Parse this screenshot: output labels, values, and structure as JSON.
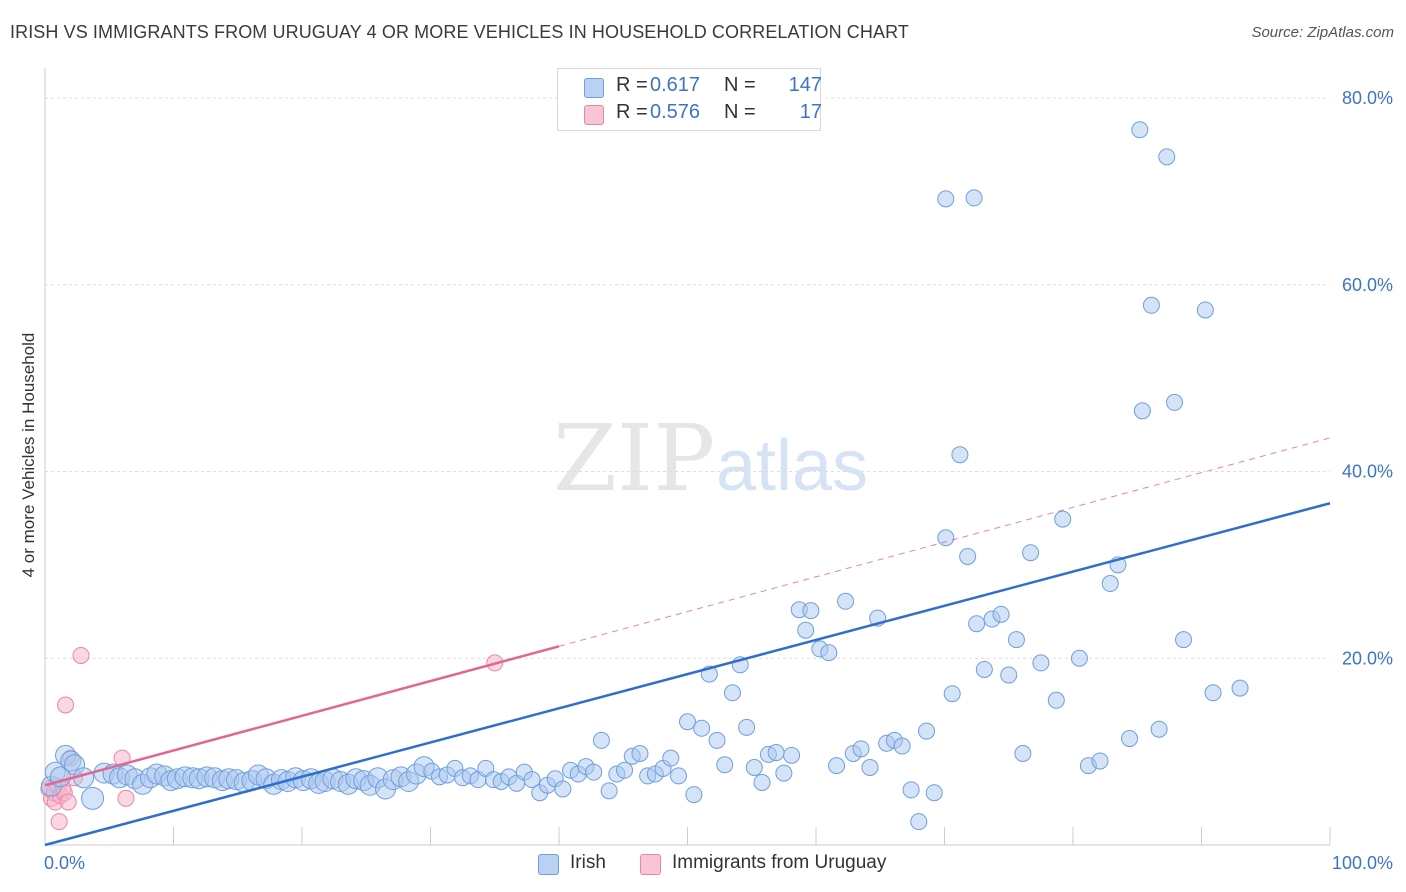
{
  "title": "IRISH VS IMMIGRANTS FROM URUGUAY 4 OR MORE VEHICLES IN HOUSEHOLD CORRELATION CHART",
  "source": "Source: ZipAtlas.com",
  "watermark": {
    "zip": "ZIP",
    "atlas": "atlas"
  },
  "colors": {
    "irish_fill": "#a9c8f0",
    "irish_stroke": "#6f9fdc",
    "irish_line": "#2f6fcb",
    "uruguay_fill": "#f7b6c9",
    "uruguay_stroke": "#ea86a6",
    "uruguay_line": "#e06792",
    "tick_text": "#3d74c6",
    "grid": "#dddddd"
  },
  "legend_top": {
    "rows": [
      {
        "r_label": "R =",
        "r_value": "0.617",
        "n_label": "N =",
        "n_value": "147"
      },
      {
        "r_label": "R =",
        "r_value": "0.576",
        "n_label": "N =",
        "n_value": "17"
      }
    ]
  },
  "legend_bottom": [
    "Irish",
    "Immigrants from Uruguay"
  ],
  "chart_data": {
    "type": "scatter",
    "xlabel": "",
    "ylabel": "4 or more Vehicles in Household",
    "xlim": [
      0,
      100
    ],
    "ylim": [
      0,
      80
    ],
    "x_tick_labels": [
      "0.0%",
      "100.0%"
    ],
    "y_ticks": [
      20,
      40,
      60,
      80
    ],
    "y_tick_labels": [
      "20.0%",
      "40.0%",
      "60.0%",
      "80.0%"
    ],
    "grid": true,
    "legend_position": "top-center",
    "series": [
      {
        "name": "Irish",
        "trend": {
          "x": [
            0,
            100
          ],
          "y": [
            0,
            36.6
          ]
        },
        "points": [
          [
            0.5,
            6.3
          ],
          [
            0.8,
            7.8
          ],
          [
            1.2,
            7.3
          ],
          [
            1.6,
            9.6
          ],
          [
            2.0,
            9.0
          ],
          [
            2.3,
            8.6
          ],
          [
            3.0,
            7.2
          ],
          [
            3.7,
            5.0
          ],
          [
            4.6,
            7.7
          ],
          [
            5.3,
            7.6
          ],
          [
            5.8,
            7.2
          ],
          [
            6.4,
            7.5
          ],
          [
            7.0,
            7.1
          ],
          [
            7.6,
            6.5
          ],
          [
            8.2,
            7.2
          ],
          [
            8.7,
            7.6
          ],
          [
            9.3,
            7.4
          ],
          [
            9.8,
            6.9
          ],
          [
            10.3,
            7.1
          ],
          [
            10.9,
            7.3
          ],
          [
            11.5,
            7.2
          ],
          [
            12.0,
            7.1
          ],
          [
            12.6,
            7.3
          ],
          [
            13.2,
            7.2
          ],
          [
            13.8,
            6.9
          ],
          [
            14.3,
            7.1
          ],
          [
            14.9,
            7.0
          ],
          [
            15.5,
            6.7
          ],
          [
            16.1,
            6.9
          ],
          [
            16.6,
            7.5
          ],
          [
            17.2,
            7.1
          ],
          [
            17.8,
            6.5
          ],
          [
            18.4,
            7.0
          ],
          [
            18.9,
            6.8
          ],
          [
            19.5,
            7.2
          ],
          [
            20.1,
            6.9
          ],
          [
            20.7,
            7.1
          ],
          [
            21.3,
            6.6
          ],
          [
            21.8,
            6.8
          ],
          [
            22.4,
            7.1
          ],
          [
            23.0,
            6.8
          ],
          [
            23.6,
            6.5
          ],
          [
            24.2,
            7.1
          ],
          [
            24.8,
            6.9
          ],
          [
            25.3,
            6.4
          ],
          [
            25.9,
            7.2
          ],
          [
            26.5,
            6.0
          ],
          [
            27.1,
            7.0
          ],
          [
            27.7,
            7.3
          ],
          [
            28.3,
            6.8
          ],
          [
            28.9,
            7.6
          ],
          [
            29.5,
            8.4
          ],
          [
            30.1,
            7.9
          ],
          [
            30.7,
            7.3
          ],
          [
            31.3,
            7.5
          ],
          [
            31.9,
            8.2
          ],
          [
            32.5,
            7.2
          ],
          [
            33.1,
            7.4
          ],
          [
            33.7,
            7.0
          ],
          [
            34.3,
            8.2
          ],
          [
            34.9,
            7.0
          ],
          [
            35.5,
            6.8
          ],
          [
            36.1,
            7.3
          ],
          [
            36.7,
            6.6
          ],
          [
            37.3,
            7.8
          ],
          [
            37.9,
            7.0
          ],
          [
            38.5,
            5.6
          ],
          [
            39.1,
            6.4
          ],
          [
            39.7,
            7.1
          ],
          [
            40.3,
            6.0
          ],
          [
            40.9,
            8.0
          ],
          [
            41.5,
            7.6
          ],
          [
            42.1,
            8.4
          ],
          [
            42.7,
            7.8
          ],
          [
            43.3,
            11.2
          ],
          [
            43.9,
            5.8
          ],
          [
            44.5,
            7.6
          ],
          [
            45.1,
            8.0
          ],
          [
            45.7,
            9.5
          ],
          [
            46.3,
            9.8
          ],
          [
            46.9,
            7.4
          ],
          [
            47.5,
            7.6
          ],
          [
            48.1,
            8.2
          ],
          [
            48.7,
            9.3
          ],
          [
            49.3,
            7.4
          ],
          [
            50.0,
            13.2
          ],
          [
            50.5,
            5.4
          ],
          [
            51.1,
            12.5
          ],
          [
            51.7,
            18.3
          ],
          [
            52.3,
            11.2
          ],
          [
            52.9,
            8.6
          ],
          [
            53.5,
            16.3
          ],
          [
            54.1,
            19.3
          ],
          [
            54.6,
            12.6
          ],
          [
            55.2,
            8.3
          ],
          [
            55.8,
            6.7
          ],
          [
            56.3,
            9.7
          ],
          [
            56.9,
            9.9
          ],
          [
            57.5,
            7.7
          ],
          [
            58.1,
            9.6
          ],
          [
            58.7,
            25.2
          ],
          [
            59.2,
            23.0
          ],
          [
            59.6,
            25.1
          ],
          [
            60.3,
            21.0
          ],
          [
            61.0,
            20.6
          ],
          [
            61.6,
            8.5
          ],
          [
            62.3,
            26.1
          ],
          [
            62.9,
            9.8
          ],
          [
            63.5,
            10.3
          ],
          [
            64.2,
            8.3
          ],
          [
            64.8,
            24.3
          ],
          [
            65.5,
            10.9
          ],
          [
            66.1,
            11.2
          ],
          [
            66.7,
            10.6
          ],
          [
            67.4,
            5.9
          ],
          [
            68.0,
            2.5
          ],
          [
            68.6,
            12.2
          ],
          [
            69.2,
            5.6
          ],
          [
            70.1,
            32.9
          ],
          [
            70.6,
            16.2
          ],
          [
            71.2,
            41.8
          ],
          [
            71.8,
            30.9
          ],
          [
            72.5,
            23.7
          ],
          [
            73.1,
            18.8
          ],
          [
            73.7,
            24.2
          ],
          [
            74.4,
            24.7
          ],
          [
            75.0,
            18.2
          ],
          [
            75.6,
            22.0
          ],
          [
            76.1,
            9.8
          ],
          [
            76.7,
            31.3
          ],
          [
            77.5,
            19.5
          ],
          [
            78.7,
            15.5
          ],
          [
            79.2,
            34.9
          ],
          [
            80.5,
            20.0
          ],
          [
            81.2,
            8.5
          ],
          [
            82.1,
            9.0
          ],
          [
            82.9,
            28.0
          ],
          [
            83.5,
            30.0
          ],
          [
            84.4,
            11.4
          ],
          [
            85.2,
            76.6
          ],
          [
            85.4,
            46.5
          ],
          [
            86.1,
            57.8
          ],
          [
            86.7,
            12.4
          ],
          [
            87.3,
            73.7
          ],
          [
            87.9,
            47.4
          ],
          [
            88.6,
            22.0
          ],
          [
            90.3,
            57.3
          ],
          [
            90.9,
            16.3
          ],
          [
            70.1,
            69.2
          ],
          [
            72.3,
            69.3
          ],
          [
            93.0,
            16.8
          ]
        ]
      },
      {
        "name": "Immigrants from Uruguay",
        "trend": {
          "x": [
            0,
            100
          ],
          "y": [
            6.4,
            43.6
          ],
          "solid_until_x": 40
        },
        "points": [
          [
            0.3,
            6.0
          ],
          [
            0.5,
            5.0
          ],
          [
            0.7,
            5.6
          ],
          [
            0.8,
            4.6
          ],
          [
            1.0,
            6.3
          ],
          [
            1.2,
            5.3
          ],
          [
            1.4,
            6.0
          ],
          [
            1.5,
            5.6
          ],
          [
            1.6,
            15.0
          ],
          [
            1.8,
            4.6
          ],
          [
            2.0,
            9.3
          ],
          [
            2.3,
            7.2
          ],
          [
            2.8,
            20.3
          ],
          [
            6.0,
            9.3
          ],
          [
            6.3,
            5.0
          ],
          [
            35.0,
            19.5
          ],
          [
            1.1,
            2.5
          ]
        ]
      }
    ]
  }
}
